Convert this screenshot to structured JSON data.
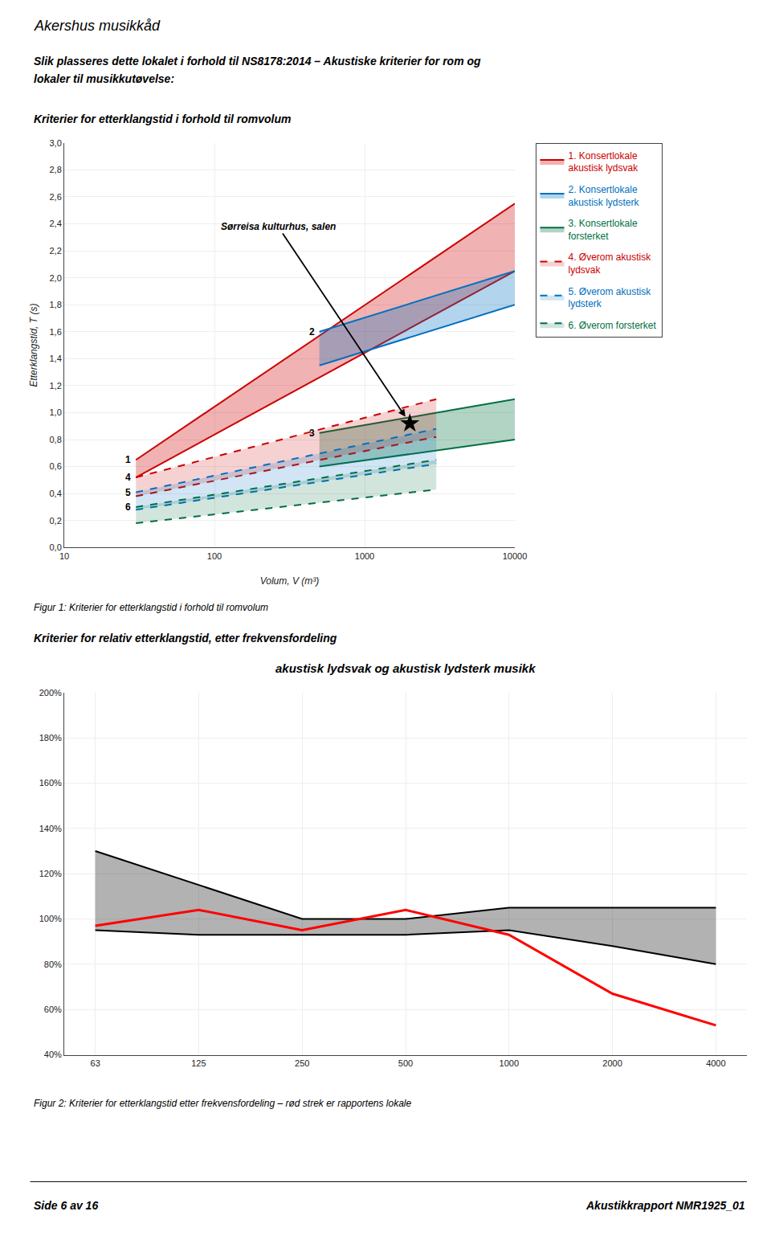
{
  "header": "Akershus musikkåd",
  "page_title": [
    "Slik plasseres dette lokalet i forhold til NS8178:2014 – Akustiske kriterier for rom og",
    "lokaler til musikkutøvelse:"
  ],
  "footer": [
    "Side 6 av 16",
    "Akustikkrapport NMR1925_01"
  ],
  "chart_data": [
    {
      "type": "band",
      "title": "Kriterier for etterklangstid i forhold til romvolum",
      "caption": "Figur 1: Kriterier for etterklangstid i forhold til romvolum",
      "xlabel": "Volum, V (m³)",
      "ylabel": "Etterklangstid, T (s)",
      "log": "x",
      "xlim": [
        10,
        10000
      ],
      "xticks": [
        10,
        100,
        1000,
        10000
      ],
      "ylim": [
        0,
        3
      ],
      "yticks": [
        {
          "value": 0,
          "label": "0,0"
        },
        {
          "value": 0.2,
          "label": "0,2"
        },
        {
          "value": 0.4,
          "label": "0,4"
        },
        {
          "value": 0.6,
          "label": "0,6"
        },
        {
          "value": 0.8,
          "label": "0,8"
        },
        {
          "value": 1,
          "label": "1,0"
        },
        {
          "value": 1.2,
          "label": "1,2"
        },
        {
          "value": 1.4,
          "label": "1,4"
        },
        {
          "value": 1.6,
          "label": "1,6"
        },
        {
          "value": 1.8,
          "label": "1,8"
        },
        {
          "value": 2,
          "label": "2,0"
        },
        {
          "value": 2.2,
          "label": "2,2"
        },
        {
          "value": 2.4,
          "label": "2,4"
        },
        {
          "value": 2.6,
          "label": "2,6"
        },
        {
          "value": 2.8,
          "label": "2,8"
        },
        {
          "value": 3,
          "label": "3,0"
        }
      ],
      "grid": true,
      "legend": "right",
      "series": [
        {
          "name": "1. Konsertlokale\nakustisk lydsvak",
          "label": "1",
          "color": "#cc0000",
          "line_style": "solid",
          "x": [
            30,
            10000
          ],
          "upper": [
            0.65,
            2.55
          ],
          "lower": [
            0.52,
            2.05
          ]
        },
        {
          "name": "2. Konsertlokale\nakustisk lydsterk",
          "label": "2",
          "color": "#0070c0",
          "line_style": "solid",
          "x": [
            500,
            10000
          ],
          "upper": [
            1.6,
            2.05
          ],
          "lower": [
            1.35,
            1.8
          ]
        },
        {
          "name": "3. Konsertlokale\nforsterket",
          "label": "3",
          "color": "#007040",
          "line_style": "solid",
          "x": [
            500,
            10000
          ],
          "upper": [
            0.85,
            1.1
          ],
          "lower": [
            0.6,
            0.8
          ]
        },
        {
          "name": "4. Øverom akustisk\nlydsvak",
          "label": "4",
          "color": "#cc0000",
          "line_style": "dashed",
          "x": [
            30,
            3000
          ],
          "upper": [
            0.52,
            1.1
          ],
          "lower": [
            0.38,
            0.82
          ]
        },
        {
          "name": "5. Øverom akustisk\nlydsterk",
          "label": "5",
          "color": "#0070c0",
          "line_style": "dashed",
          "x": [
            30,
            3000
          ],
          "upper": [
            0.41,
            0.88
          ],
          "lower": [
            0.28,
            0.62
          ]
        },
        {
          "name": "6. Øverom forsterket",
          "label": "6",
          "color": "#007040",
          "line_style": "dashed",
          "x": [
            30,
            3000
          ],
          "upper": [
            0.3,
            0.65
          ],
          "lower": [
            0.18,
            0.43
          ]
        },
        {
          "type": "scatter",
          "marker": "star",
          "color": "#000000",
          "x": [
            2000
          ],
          "values": [
            0.92
          ]
        }
      ],
      "annotations": [
        {
          "text": "Sørreisa kulturhus, salen",
          "x": 2000,
          "y": 0.92
        }
      ]
    },
    {
      "type": "line",
      "title": "Kriterier for relativ etterklangstid, etter frekvensfordeling",
      "subtitle": "akustisk lydsvak og akustisk lydsterk musikk",
      "caption": "Figur 2: Kriterier for etterklangstid etter frekvensfordeling – rød strek er rapportens lokale",
      "categories": [
        "63",
        "125",
        "250",
        "500",
        "1000",
        "2000",
        "4000"
      ],
      "ylim": [
        40,
        200
      ],
      "yticks": [
        {
          "value": 40,
          "label": "40%"
        },
        {
          "value": 60,
          "label": "60%"
        },
        {
          "value": 80,
          "label": "80%"
        },
        {
          "value": 100,
          "label": "100%"
        },
        {
          "value": 120,
          "label": "120%"
        },
        {
          "value": 140,
          "label": "140%"
        },
        {
          "value": 160,
          "label": "160%"
        },
        {
          "value": 180,
          "label": "180%"
        },
        {
          "value": 200,
          "label": "200%"
        }
      ],
      "grid": true,
      "series": [
        {
          "type": "band",
          "color": "#000000",
          "line_style": "solid",
          "upper": [
            130,
            115,
            100,
            100,
            105,
            105,
            105
          ],
          "lower": [
            95,
            93,
            93,
            93,
            95,
            88,
            80
          ]
        },
        {
          "type": "line",
          "color": "#ff0000",
          "line_style": "solid",
          "values": [
            97,
            104,
            95,
            104,
            93,
            67,
            53
          ]
        }
      ]
    }
  ]
}
